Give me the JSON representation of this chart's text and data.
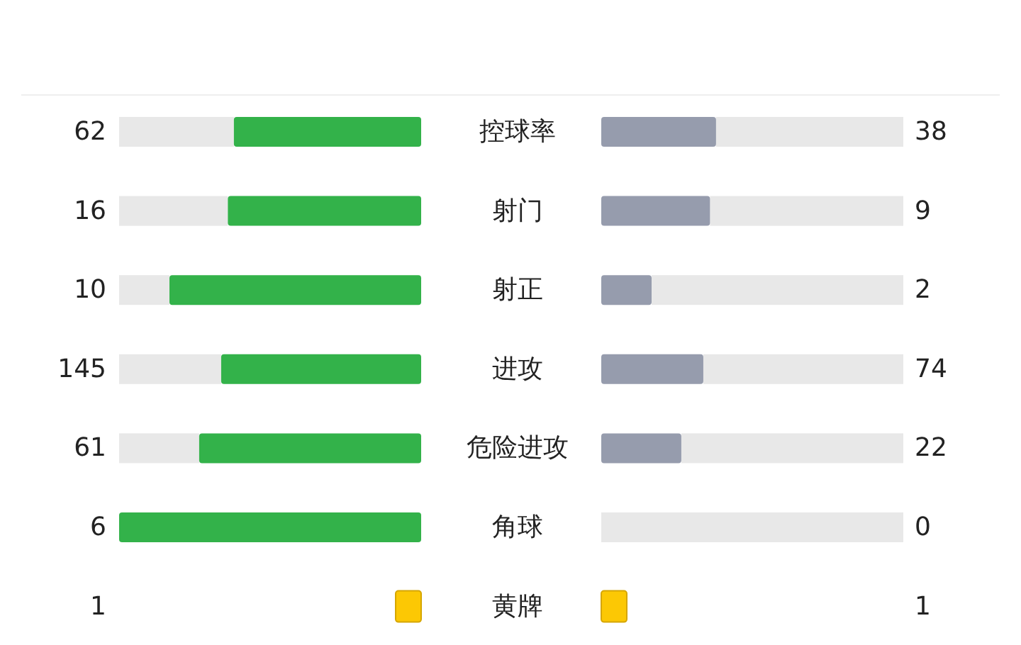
{
  "chart_data": {
    "type": "other",
    "data_labels": true,
    "categories": [
      "控球率",
      "射门",
      "射正",
      "进攻",
      "危险进攻",
      "角球",
      "黄牌"
    ],
    "series": [
      {
        "color": "#33b24a",
        "values": [
          62,
          16,
          10,
          145,
          61,
          6,
          1
        ]
      },
      {
        "color": "#969cad",
        "values": [
          38,
          9,
          2,
          74,
          22,
          0,
          1
        ]
      }
    ]
  }
}
